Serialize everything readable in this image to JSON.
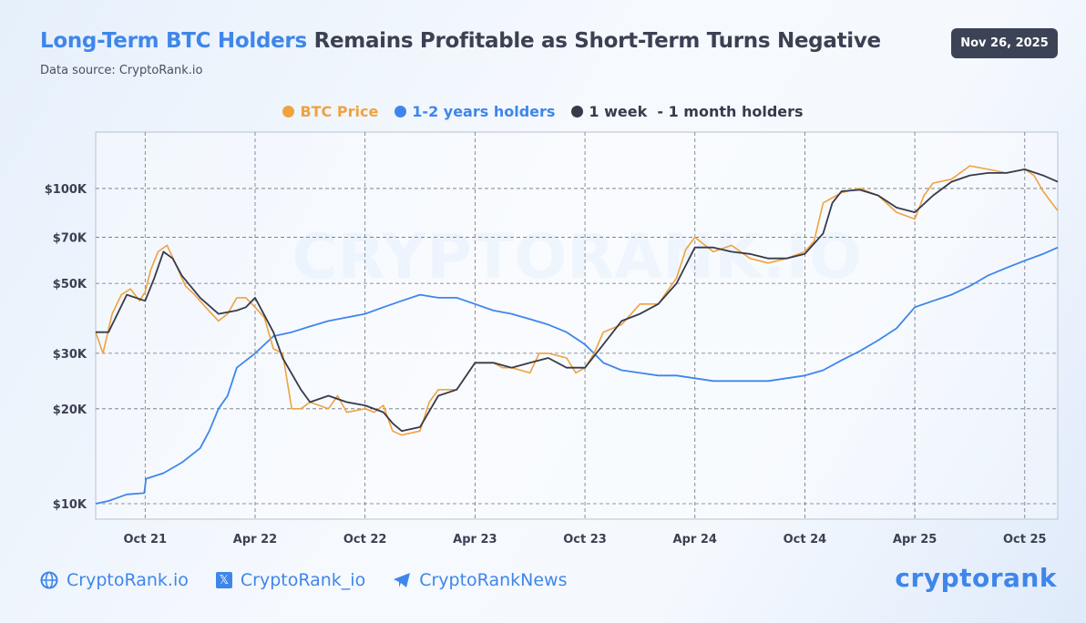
{
  "header": {
    "title_highlight": "Long-Term BTC Holders",
    "title_rest": " Remains Profitable as Short-Term Turns Negative",
    "source": "Data source: CryptoRank.io",
    "date_badge": "Nov 26, 2025"
  },
  "colors": {
    "btc": "#f0a23e",
    "lth": "#3f86ea",
    "sth": "#363b4c",
    "accent": "#3f86ea"
  },
  "footer": {
    "website": "CryptoRank.io",
    "x_handle": "CryptoRank_io",
    "telegram": "CryptoRankNews",
    "logo": "cryptorank",
    "icons": [
      "globe-icon",
      "x-icon",
      "telegram-icon"
    ]
  },
  "chart_data": {
    "type": "line",
    "title": "Long-Term BTC Holders Remains Profitable as Short-Term Turns Negative",
    "watermark": "CRYPTORANK.IO",
    "x_unit": "months since Oct 2021",
    "xlim": [
      -2.7,
      49.8
    ],
    "ylim": [
      8930,
      151000
    ],
    "yscale": "log",
    "grid": true,
    "legend_position": "top-center",
    "x_ticks": [
      {
        "v": 0,
        "label": "Oct 21"
      },
      {
        "v": 6,
        "label": "Apr 22"
      },
      {
        "v": 12,
        "label": "Oct 22"
      },
      {
        "v": 18,
        "label": "Apr 23"
      },
      {
        "v": 24,
        "label": "Oct 23"
      },
      {
        "v": 30,
        "label": "Apr 24"
      },
      {
        "v": 36,
        "label": "Oct 24"
      },
      {
        "v": 42,
        "label": "Apr 25"
      },
      {
        "v": 48,
        "label": "Oct 25"
      }
    ],
    "y_ticks": [
      {
        "v": 100000,
        "label": "$100K"
      },
      {
        "v": 70000,
        "label": "$70K"
      },
      {
        "v": 50000,
        "label": "$50K"
      },
      {
        "v": 30000,
        "label": "$30K"
      },
      {
        "v": 20000,
        "label": "$20K"
      },
      {
        "v": 10000,
        "label": "$10K"
      }
    ],
    "series": [
      {
        "name": "1-2 years holders",
        "color": "#3f86ea",
        "x": [
          -2.7,
          -2,
          -1,
          -0.05,
          0.05,
          1,
          2,
          3,
          3.5,
          4,
          4.5,
          5,
          6,
          7,
          8,
          9,
          10,
          11,
          12,
          13,
          14,
          15,
          16,
          17,
          18,
          19,
          20,
          21,
          22,
          23,
          24,
          25,
          26,
          27,
          28,
          29,
          30,
          31,
          32,
          33,
          34,
          35,
          36,
          37,
          38,
          39,
          40,
          41,
          42,
          43,
          44,
          45,
          46,
          47,
          48,
          49,
          49.8
        ],
        "y": [
          10000,
          10200,
          10700,
          10800,
          12000,
          12500,
          13500,
          15000,
          17000,
          20000,
          22000,
          27000,
          30000,
          34000,
          35000,
          36500,
          38000,
          39000,
          40000,
          42000,
          44000,
          46000,
          45000,
          45000,
          43000,
          41000,
          40000,
          38500,
          37000,
          35000,
          32000,
          28000,
          26500,
          26000,
          25500,
          25500,
          25000,
          24500,
          24500,
          24500,
          24500,
          25000,
          25500,
          26500,
          28500,
          30500,
          33000,
          36000,
          42000,
          44000,
          46000,
          49000,
          53000,
          56000,
          59000,
          62000,
          65000
        ]
      },
      {
        "name": "BTC Price",
        "color": "#f0a23e",
        "x": [
          -2.7,
          -2.3,
          -1.8,
          -1.3,
          -0.8,
          -0.3,
          0,
          0.3,
          0.7,
          1.2,
          1.7,
          2.2,
          2.7,
          3.3,
          4,
          4.5,
          5,
          5.5,
          6,
          6.5,
          7,
          7.5,
          8,
          8.5,
          9,
          10,
          10.5,
          11,
          12,
          12.5,
          13,
          13.5,
          14,
          15,
          15.5,
          16,
          17,
          18,
          19,
          19.5,
          20,
          21,
          21.5,
          22,
          23,
          23.5,
          24,
          24.5,
          25,
          26,
          27,
          28,
          29,
          29.5,
          30,
          31,
          32,
          33,
          34,
          35,
          36,
          36.5,
          37,
          38,
          39,
          40,
          41,
          42,
          42.5,
          43,
          44,
          45,
          46,
          47,
          48,
          48.5,
          49,
          49.8
        ],
        "y": [
          35000,
          30000,
          40000,
          46000,
          48000,
          44000,
          47000,
          55000,
          63000,
          66000,
          57000,
          49000,
          46000,
          42000,
          38000,
          40000,
          45000,
          45000,
          42000,
          39000,
          31000,
          30000,
          20000,
          20000,
          21000,
          20000,
          22000,
          19500,
          20000,
          19500,
          20500,
          17000,
          16500,
          17000,
          21000,
          23000,
          23000,
          28000,
          28000,
          27000,
          27000,
          26000,
          30000,
          30000,
          29000,
          26000,
          27000,
          30000,
          35000,
          37000,
          43000,
          43000,
          52000,
          64000,
          70000,
          63000,
          66000,
          60000,
          58000,
          60000,
          63000,
          68000,
          90000,
          97000,
          100000,
          95000,
          84000,
          80000,
          95000,
          104000,
          107000,
          118000,
          115000,
          112000,
          115000,
          110000,
          98000,
          85000
        ]
      },
      {
        "name": "1 week  - 1 month holders",
        "color": "#363b4c",
        "x": [
          -2.7,
          -2,
          -1,
          0,
          0.5,
          1,
          1.5,
          2,
          3,
          4,
          5,
          5.5,
          6,
          7,
          7.5,
          8.5,
          9,
          10,
          11,
          12,
          13,
          13.5,
          14,
          15,
          16,
          17,
          18,
          19,
          20,
          21,
          22,
          23,
          24,
          25,
          26,
          27,
          28,
          29,
          30,
          31,
          32,
          33,
          34,
          35,
          36,
          37,
          37.5,
          38,
          39,
          40,
          41,
          42,
          43,
          44,
          45,
          46,
          47,
          48,
          49,
          49.8
        ],
        "y": [
          35000,
          35000,
          46000,
          44000,
          52000,
          63000,
          60000,
          53000,
          45000,
          40000,
          41000,
          42000,
          45000,
          35000,
          29000,
          23000,
          21000,
          22000,
          21000,
          20500,
          19500,
          18000,
          17000,
          17500,
          22000,
          23000,
          28000,
          28000,
          27000,
          28000,
          29000,
          27000,
          27000,
          32000,
          38000,
          40000,
          43000,
          50000,
          65000,
          65000,
          63000,
          62000,
          60000,
          60000,
          62000,
          72000,
          90000,
          98000,
          99000,
          95000,
          87000,
          84000,
          95000,
          105000,
          110000,
          112000,
          112000,
          115000,
          110000,
          105000
        ]
      }
    ]
  }
}
